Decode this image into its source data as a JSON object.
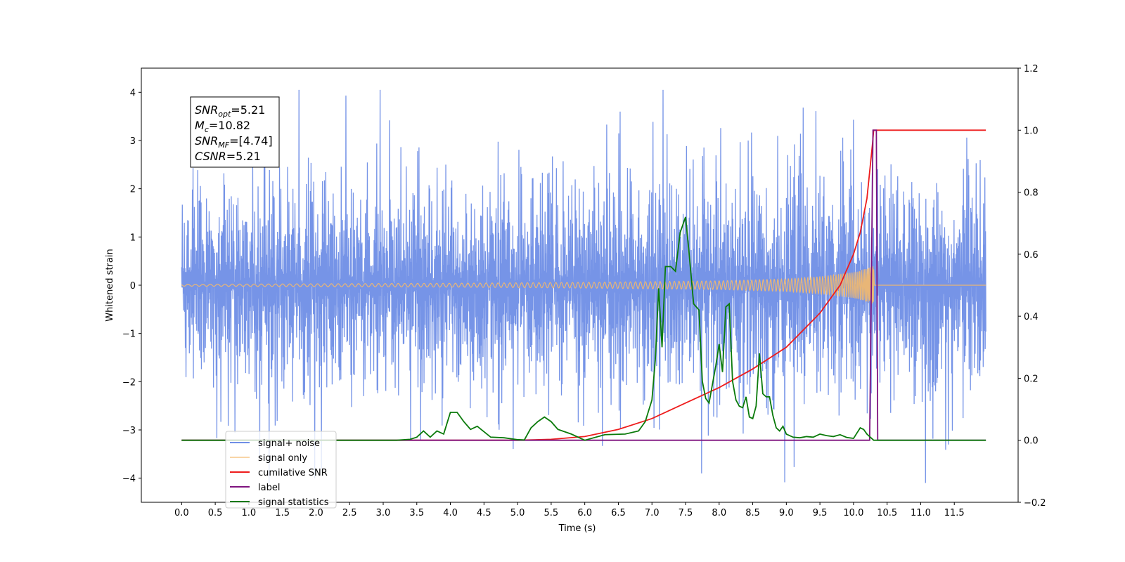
{
  "chart_data": {
    "type": "line",
    "title": "",
    "xlabel": "Time (s)",
    "ylabel": "Whitened strain",
    "xlim": [
      -0.6,
      12.45
    ],
    "ylim": [
      -4.5,
      4.5
    ],
    "y2lim": [
      -0.2,
      1.2
    ],
    "grid": false,
    "legend_placement": "lower-left",
    "x_ticks": [
      "0.0",
      "0.5",
      "1.0",
      "1.5",
      "2.0",
      "2.5",
      "3.0",
      "3.5",
      "4.0",
      "4.5",
      "5.0",
      "5.5",
      "6.0",
      "6.5",
      "7.0",
      "7.5",
      "8.0",
      "8.5",
      "9.0",
      "9.5",
      "10.0",
      "10.5",
      "11.0",
      "11.5"
    ],
    "y_ticks": [
      "−4",
      "−3",
      "−2",
      "−1",
      "0",
      "1",
      "2",
      "3",
      "4"
    ],
    "y2_ticks": [
      "−0.2",
      "0.0",
      "0.2",
      "0.4",
      "0.6",
      "0.8",
      "1.0",
      "1.2"
    ],
    "annotation": [
      {
        "base": "SNR",
        "sub": "opt",
        "rest": "=5.21"
      },
      {
        "base": "M",
        "sub": "c",
        "rest": "=10.82"
      },
      {
        "base": "SNR",
        "sub": "MF",
        "rest": "=[4.74]"
      },
      {
        "base": "CSNR",
        "sub": "",
        "rest": "=5.21"
      }
    ],
    "series": [
      {
        "name": "signal+ noise",
        "color": "#6f8ee6",
        "axis": "left",
        "description_values": {
          "duration_s": 12.0,
          "noise_band": [
            -2.0,
            2.0
          ],
          "extreme_min": -4.1,
          "extreme_max": 4.05
        }
      },
      {
        "name": "signal only",
        "color": "#f5b96a",
        "axis": "left",
        "envelope_x": [
          0.0,
          2.0,
          4.0,
          6.0,
          8.0,
          9.0,
          9.5,
          10.0,
          10.2,
          10.3
        ],
        "envelope_y": [
          0.02,
          0.03,
          0.04,
          0.06,
          0.09,
          0.13,
          0.18,
          0.27,
          0.35,
          0.4
        ]
      },
      {
        "name": "cumilative SNR",
        "color": "#ee1c1c",
        "axis": "right",
        "x": [
          0.0,
          5.0,
          5.5,
          6.0,
          6.5,
          7.0,
          7.5,
          8.0,
          8.5,
          9.0,
          9.5,
          9.8,
          10.0,
          10.1,
          10.2,
          10.28,
          10.3,
          11.97
        ],
        "y": [
          0.0,
          0.0,
          0.003,
          0.012,
          0.035,
          0.07,
          0.12,
          0.17,
          0.23,
          0.3,
          0.41,
          0.5,
          0.6,
          0.67,
          0.78,
          0.95,
          1.0,
          1.0
        ]
      },
      {
        "name": "label",
        "color": "#7f137f",
        "axis": "right",
        "x": [
          0.0,
          10.24,
          10.29,
          10.34,
          10.36,
          11.97
        ],
        "y": [
          0.0,
          0.0,
          1.0,
          1.0,
          0.0,
          0.0
        ]
      },
      {
        "name": "signal statistics",
        "color": "#0a7a0a",
        "axis": "right",
        "x": [
          0.0,
          3.2,
          3.4,
          3.5,
          3.6,
          3.7,
          3.8,
          3.9,
          4.0,
          4.1,
          4.2,
          4.3,
          4.4,
          4.6,
          4.8,
          5.0,
          5.1,
          5.2,
          5.3,
          5.4,
          5.5,
          5.6,
          5.8,
          6.0,
          6.3,
          6.6,
          6.8,
          6.9,
          7.0,
          7.05,
          7.1,
          7.15,
          7.2,
          7.28,
          7.35,
          7.42,
          7.5,
          7.55,
          7.62,
          7.7,
          7.75,
          7.8,
          7.85,
          7.9,
          7.95,
          8.0,
          8.05,
          8.1,
          8.15,
          8.2,
          8.25,
          8.3,
          8.35,
          8.4,
          8.45,
          8.5,
          8.55,
          8.6,
          8.65,
          8.7,
          8.75,
          8.8,
          8.85,
          8.9,
          8.95,
          9.0,
          9.1,
          9.2,
          9.3,
          9.4,
          9.5,
          9.6,
          9.7,
          9.8,
          9.9,
          10.0,
          10.1,
          10.15,
          10.2,
          10.3,
          10.35,
          11.97
        ],
        "y": [
          0.0,
          0.0,
          0.003,
          0.01,
          0.03,
          0.01,
          0.03,
          0.02,
          0.09,
          0.09,
          0.06,
          0.035,
          0.045,
          0.01,
          0.008,
          0.002,
          0.001,
          0.04,
          0.06,
          0.075,
          0.06,
          0.035,
          0.02,
          0.0,
          0.018,
          0.02,
          0.03,
          0.06,
          0.13,
          0.26,
          0.49,
          0.3,
          0.56,
          0.56,
          0.545,
          0.67,
          0.72,
          0.61,
          0.44,
          0.42,
          0.19,
          0.135,
          0.12,
          0.18,
          0.24,
          0.31,
          0.22,
          0.43,
          0.44,
          0.19,
          0.13,
          0.11,
          0.105,
          0.14,
          0.075,
          0.07,
          0.11,
          0.28,
          0.15,
          0.14,
          0.14,
          0.08,
          0.04,
          0.03,
          0.045,
          0.02,
          0.01,
          0.008,
          0.012,
          0.01,
          0.02,
          0.015,
          0.012,
          0.018,
          0.009,
          0.006,
          0.04,
          0.035,
          0.02,
          0.0,
          0.0,
          0.0
        ]
      }
    ],
    "legend": [
      "signal+ noise",
      "signal only",
      "cumilative SNR",
      "label",
      "signal statistics"
    ],
    "legend_hidden_text": [
      "signal only"
    ]
  }
}
